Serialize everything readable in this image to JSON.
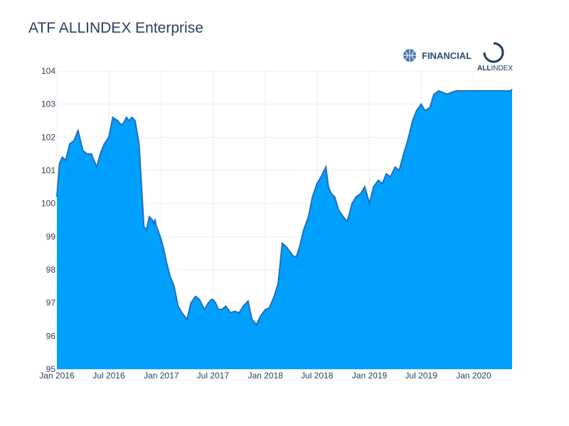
{
  "chart": {
    "title": "ATF ALLINDEX Enterprise"
  },
  "logos": {
    "left": {
      "text": "FINANCIAL",
      "color": "#2b4e72"
    },
    "right": {
      "text_bold": "ALL",
      "text_light": "INDEX",
      "color": "#1f3b57"
    }
  },
  "colors": {
    "fill": "#00a0ff",
    "line": "#1f6fc0",
    "grid": "#eeeeee"
  },
  "chart_data": {
    "type": "area",
    "title": "ATF ALLINDEX Enterprise",
    "xlabel": "",
    "ylabel": "",
    "xlim": [
      "2016-01-01",
      "2020-05-15"
    ],
    "ylim": [
      95,
      104
    ],
    "grid": true,
    "x_ticks": [
      "2016-01-01",
      "2016-07-01",
      "2017-01-01",
      "2017-07-01",
      "2018-01-01",
      "2018-07-01",
      "2019-01-01",
      "2019-07-01",
      "2020-01-01"
    ],
    "x_tick_labels": [
      "Jan 2016",
      "Jul 2016",
      "Jan 2017",
      "Jul 2017",
      "Jan 2018",
      "Jul 2018",
      "Jan 2019",
      "Jul 2019",
      "Jan 2020"
    ],
    "y_ticks": [
      95,
      96,
      97,
      98,
      99,
      100,
      101,
      102,
      103,
      104
    ],
    "series": [
      {
        "x": [
          "2016-01-01",
          "2016-01-10",
          "2016-01-20",
          "2016-02-01",
          "2016-02-15",
          "2016-03-01",
          "2016-03-15",
          "2016-04-01",
          "2016-04-15",
          "2016-05-01",
          "2016-05-10",
          "2016-05-20",
          "2016-06-01",
          "2016-06-15",
          "2016-07-01",
          "2016-07-15",
          "2016-08-01",
          "2016-08-10",
          "2016-08-20",
          "2016-09-01",
          "2016-09-10",
          "2016-09-20",
          "2016-10-01",
          "2016-10-15",
          "2016-11-01",
          "2016-11-10",
          "2016-11-20",
          "2016-12-01",
          "2016-12-05",
          "2016-12-10",
          "2016-12-15",
          "2016-12-20",
          "2017-01-01",
          "2017-01-10",
          "2017-01-20",
          "2017-02-01",
          "2017-02-15",
          "2017-03-01",
          "2017-03-15",
          "2017-04-01",
          "2017-04-15",
          "2017-05-01",
          "2017-05-15",
          "2017-06-01",
          "2017-06-15",
          "2017-06-25",
          "2017-07-01",
          "2017-07-10",
          "2017-07-20",
          "2017-08-01",
          "2017-08-15",
          "2017-09-01",
          "2017-09-15",
          "2017-10-01",
          "2017-10-15",
          "2017-11-01",
          "2017-11-15",
          "2017-12-01",
          "2017-12-15",
          "2018-01-01",
          "2018-01-15",
          "2018-02-01",
          "2018-02-15",
          "2018-03-01",
          "2018-03-15",
          "2018-04-01",
          "2018-04-10",
          "2018-04-20",
          "2018-05-01",
          "2018-05-15",
          "2018-06-01",
          "2018-06-15",
          "2018-07-01",
          "2018-07-15",
          "2018-08-01",
          "2018-08-10",
          "2018-08-20",
          "2018-09-01",
          "2018-09-15",
          "2018-10-01",
          "2018-10-15",
          "2018-11-01",
          "2018-11-15",
          "2018-12-01",
          "2018-12-15",
          "2019-01-01",
          "2019-01-15",
          "2019-02-01",
          "2019-02-15",
          "2019-03-01",
          "2019-03-15",
          "2019-04-01",
          "2019-04-15",
          "2019-05-01",
          "2019-05-15",
          "2019-06-01",
          "2019-06-15",
          "2019-07-01",
          "2019-07-15",
          "2019-08-01",
          "2019-08-15",
          "2019-09-01",
          "2019-09-15",
          "2019-10-01",
          "2019-10-15",
          "2019-11-01",
          "2019-11-15",
          "2019-12-01",
          "2019-12-15",
          "2020-01-01",
          "2020-01-15",
          "2020-02-01",
          "2020-02-15",
          "2020-03-01",
          "2020-03-15",
          "2020-04-01",
          "2020-04-15",
          "2020-05-01",
          "2020-05-10",
          "2020-05-15"
        ],
        "y": [
          100.2,
          101.2,
          101.4,
          101.3,
          101.8,
          101.9,
          102.2,
          101.6,
          101.5,
          101.5,
          101.3,
          101.1,
          101.5,
          101.8,
          102.0,
          102.6,
          102.5,
          102.4,
          102.4,
          102.6,
          102.5,
          102.6,
          102.5,
          101.8,
          99.3,
          99.2,
          99.6,
          99.5,
          99.4,
          99.5,
          99.3,
          99.2,
          98.9,
          98.6,
          98.2,
          97.8,
          97.5,
          96.9,
          96.7,
          96.5,
          97.0,
          97.2,
          97.1,
          96.8,
          97.0,
          97.1,
          97.1,
          97.0,
          96.8,
          96.8,
          96.9,
          96.7,
          96.75,
          96.7,
          96.9,
          97.05,
          96.5,
          96.35,
          96.6,
          96.8,
          96.85,
          97.2,
          97.6,
          98.8,
          98.7,
          98.5,
          98.4,
          98.4,
          98.7,
          99.2,
          99.6,
          100.2,
          100.6,
          100.8,
          101.1,
          100.5,
          100.3,
          100.2,
          99.8,
          99.6,
          99.45,
          100.0,
          100.2,
          100.3,
          100.5,
          100.0,
          100.5,
          100.7,
          100.6,
          100.9,
          100.8,
          101.1,
          101.0,
          101.5,
          101.9,
          102.5,
          102.8,
          103.0,
          102.8,
          102.9,
          103.3,
          103.4,
          103.35,
          103.3,
          103.35,
          103.4,
          103.4,
          103.4,
          103.4,
          103.4,
          103.4,
          103.4,
          103.4,
          103.4,
          103.4,
          103.4,
          103.4,
          103.4,
          103.4,
          103.45
        ]
      }
    ]
  }
}
